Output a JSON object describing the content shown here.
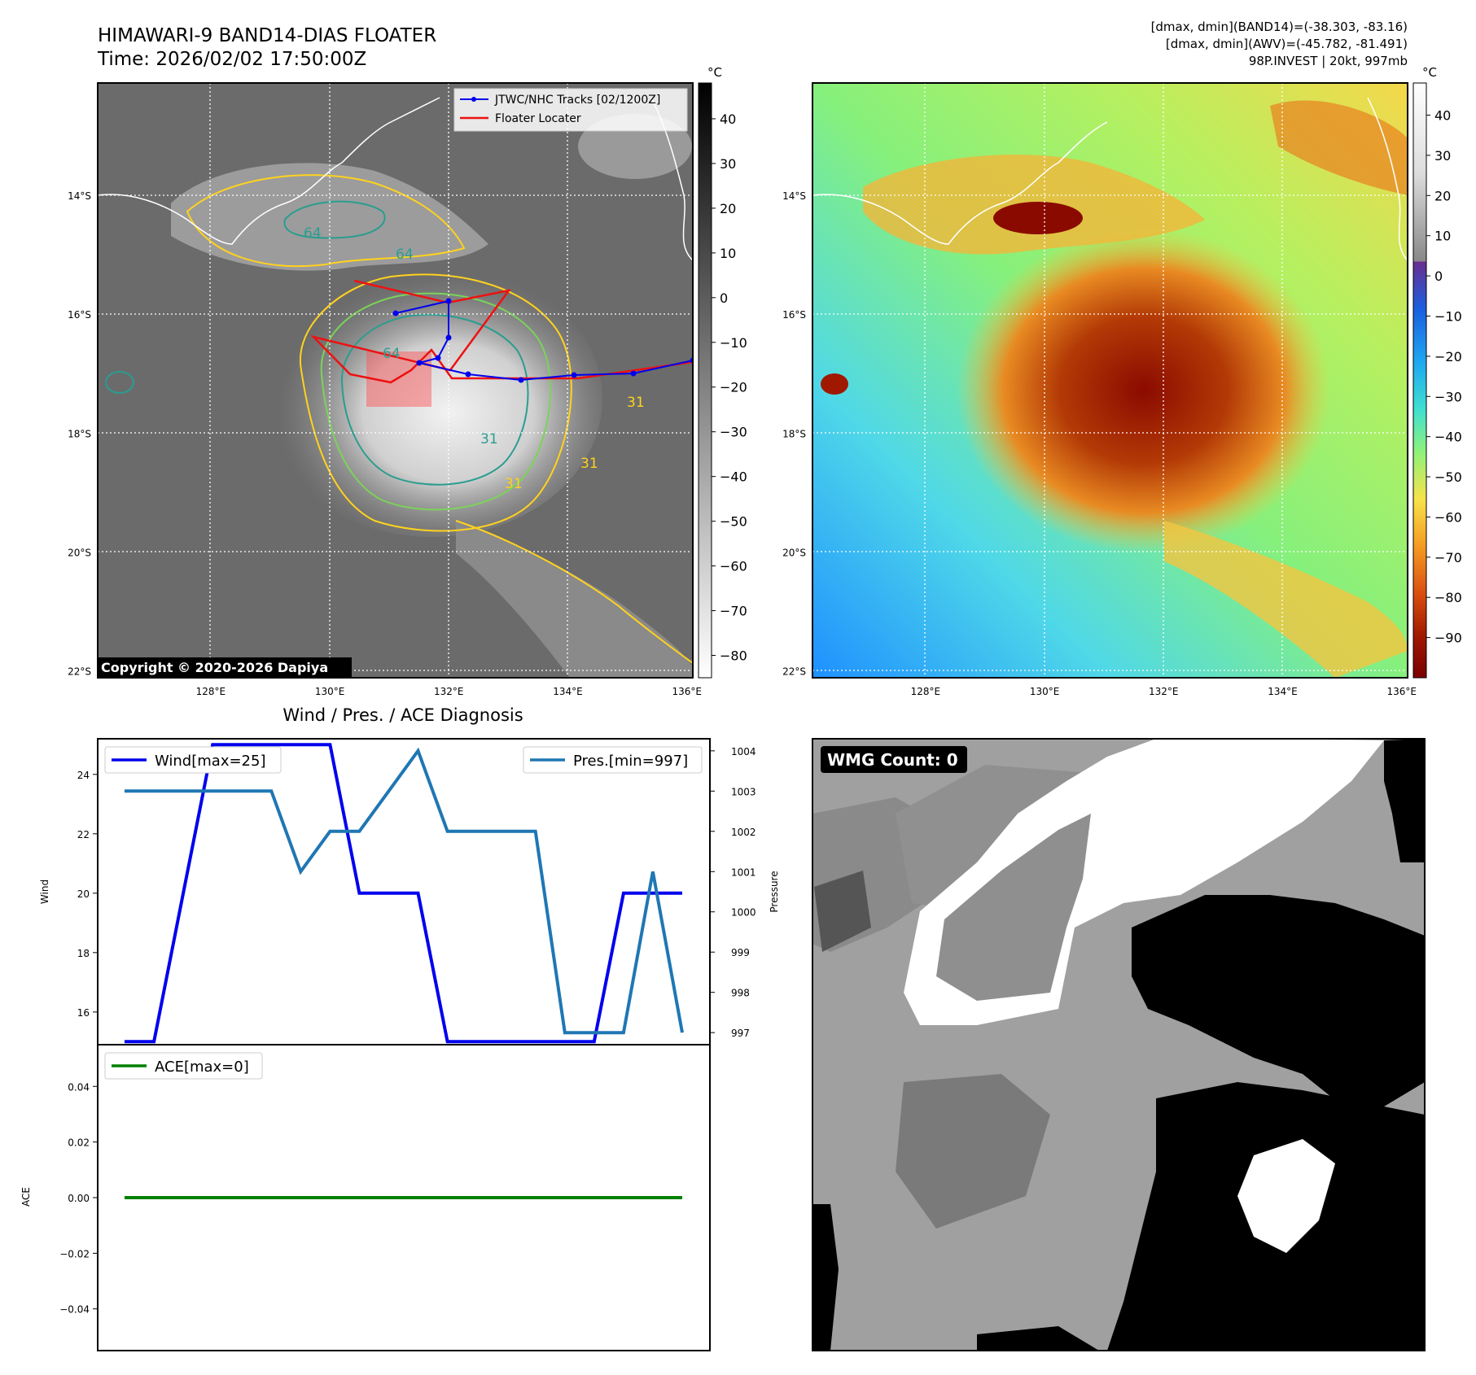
{
  "header": {
    "title_line1": "HIMAWARI-9 BAND14-DIAS FLOATER",
    "title_line2": "Time: 2026/02/02 17:50:00Z",
    "info_line1": "[dmax, dmin](BAND14)=(-38.303, -83.16)",
    "info_line2": "[dmax, dmin](AWV)=(-45.782, -81.491)",
    "info_line3": "98P.INVEST | 20kt, 997mb"
  },
  "map_axes": {
    "lon_labels": [
      "128°E",
      "130°E",
      "132°E",
      "134°E",
      "136°E"
    ],
    "lat_labels": [
      "14°S",
      "16°S",
      "18°S",
      "20°S",
      "22°S"
    ]
  },
  "ir_panel": {
    "legend": {
      "track": "JTWC/NHC Tracks [02/1200Z]",
      "floater": "Floater Locater"
    },
    "copyright": "Copyright © 2020-2026 Dapiya",
    "contour_labels": [
      "64",
      "64",
      "31",
      "31",
      "31",
      "64",
      "31"
    ],
    "colorbar": {
      "unit": "°C",
      "ticks": [
        "40",
        "30",
        "20",
        "10",
        "0",
        "−10",
        "−20",
        "−30",
        "−40",
        "−50",
        "−60",
        "−70",
        "−80"
      ]
    }
  },
  "color_panel": {
    "colorbar": {
      "unit": "°C",
      "ticks": [
        "40",
        "30",
        "20",
        "10",
        "0",
        "−10",
        "−20",
        "−30",
        "−40",
        "−50",
        "−60",
        "−70",
        "−80",
        "−90"
      ]
    }
  },
  "wmg_panel": {
    "label": "WMG Count: 0"
  },
  "chart_data": [
    {
      "type": "line",
      "title": "Wind / Pres. / ACE Diagnosis",
      "ylabel": "Wind",
      "y2label": "Pressure",
      "ylim": [
        14.9,
        25.2
      ],
      "y2lim": [
        996.7,
        1004.3
      ],
      "yticks": [
        16,
        18,
        20,
        22,
        24
      ],
      "y2ticks": [
        997,
        998,
        999,
        1000,
        1001,
        1002,
        1003,
        1004
      ],
      "x": [
        0,
        1,
        2,
        3,
        4,
        5,
        6,
        7,
        8,
        9,
        10,
        11,
        12,
        13,
        14,
        15,
        16,
        17,
        18,
        19
      ],
      "series": [
        {
          "name": "Wind[max=25]",
          "axis": "left",
          "color": "#0000ee",
          "values": [
            15,
            15,
            20,
            25,
            25,
            25,
            25,
            25,
            20,
            20,
            20,
            15,
            15,
            15,
            15,
            15,
            15,
            20,
            20,
            20
          ]
        },
        {
          "name": "Pres.[min=997]",
          "axis": "right",
          "color": "#1f77b4",
          "values": [
            1003,
            1003,
            1003,
            1003,
            1003,
            1003,
            1001,
            1002,
            1002,
            1003,
            1004,
            1002,
            1002,
            1002,
            1002,
            997,
            997,
            997,
            1001,
            997
          ]
        }
      ]
    },
    {
      "type": "line",
      "ylabel": "ACE",
      "ylim": [
        -0.055,
        0.055
      ],
      "yticks": [
        0.04,
        0.02,
        0.0,
        -0.02,
        -0.04
      ],
      "ytick_labels": [
        "0.04",
        "0.02",
        "0.00",
        "−0.02",
        "−0.04"
      ],
      "x": [
        0,
        19
      ],
      "series": [
        {
          "name": "ACE[max=0]",
          "color": "#008000",
          "values": [
            0,
            0
          ]
        }
      ]
    }
  ]
}
